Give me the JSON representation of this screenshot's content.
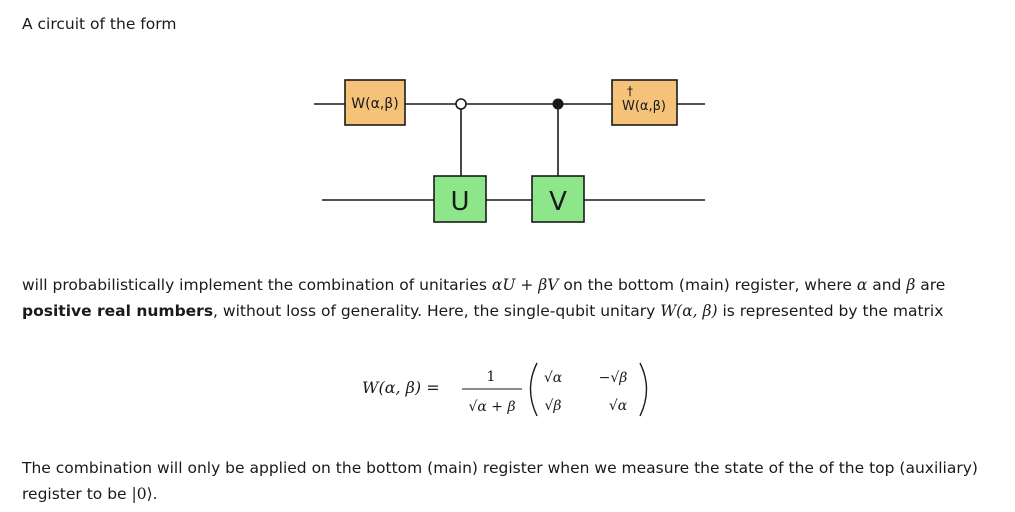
{
  "intro": "A circuit of the form",
  "desc": {
    "t1": "will probabilistically implement the combination of unitaries ",
    "expr": "αU + βV",
    "t2": " on the bottom (main) register, where ",
    "alpha": "α",
    "and": " and ",
    "beta": "β",
    "t3": " are",
    "bold": "positive real numbers",
    "t4": ", without loss of generality. Here, the single-qubit unitary ",
    "w": "W(α, β)",
    "t5": " is represented by the matrix"
  },
  "circuit": {
    "gate_w": "W(α,β)",
    "gate_w_dag": "W(α,β)",
    "dagger": "†",
    "gate_u": "U",
    "gate_v": "V",
    "colors": {
      "w_gate": "#f5c27a",
      "uv_gate": "#8ee68a",
      "wire": "#1a1a1a"
    }
  },
  "formula": {
    "lhs": "W(α, β) =",
    "num": "1",
    "den": "√α + β",
    "m11": "√α",
    "m12": "−√β",
    "m21": "√β",
    "m22": "√α"
  },
  "final": {
    "t1": "The combination will only be applied on the bottom (main) register when we measure the state of the of the top (auxiliary) register to be ",
    "ket": "|0⟩",
    "t2": "."
  }
}
